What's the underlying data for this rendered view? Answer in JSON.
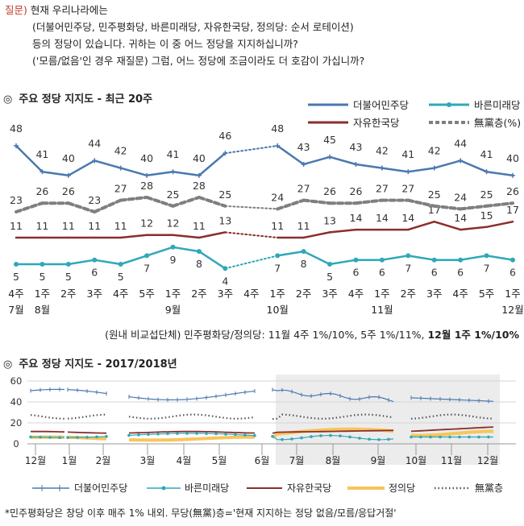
{
  "question": {
    "label": "질문)",
    "lines": [
      "현재 우리나라에는",
      "(더불어민주당, 민주평화당, 바른미래당, 자유한국당, 정의당: 순서 로테이션)",
      "등의 정당이 있습니다. 귀하는 이 중 어느 정당을 지지하십니까?",
      "('모름/없음'인 경우 재질문) 그럼, 어느 정당에 조금이라도 더 호감이 가십니까?"
    ]
  },
  "section1": {
    "marker": "◎",
    "title": "주요 정당 지지도 - 최근 20주"
  },
  "section2": {
    "marker": "◎",
    "title": "주요 정당 지지도 - 2017/2018년"
  },
  "footnote1": {
    "normal": "(원내 비교섭단체) 민주평화당/정의당: 11월 4주 1%/10%, 5주 1%/11%, ",
    "bold": "12월 1주 1%/10%"
  },
  "footnote2": "*민주평화당은 창당 이후 매주 1% 내외. 무당(無黨)층='현재 지지하는 정당 없음/모름/응답거절'",
  "chart_data": [
    {
      "type": "line",
      "title": "주요 정당 지지도 - 최근 20주",
      "categories": [
        "4주",
        "1주",
        "2주",
        "3주",
        "4주",
        "5주",
        "1주",
        "2주",
        "3주",
        "4주",
        "1주",
        "2주",
        "3주",
        "4주",
        "1주",
        "2주",
        "3주",
        "4주",
        "5주",
        "1주"
      ],
      "month_labels": [
        {
          "index": 0,
          "label": "7월"
        },
        {
          "index": 1,
          "label": "8월"
        },
        {
          "index": 6,
          "label": "9월"
        },
        {
          "index": 10,
          "label": "10월"
        },
        {
          "index": 14,
          "label": "11월"
        },
        {
          "index": 19,
          "label": "12월"
        }
      ],
      "series": [
        {
          "name": "더불어민주당",
          "color": "#4a78b0",
          "values": [
            48,
            41,
            40,
            44,
            42,
            40,
            41,
            40,
            46,
            null,
            48,
            43,
            45,
            43,
            42,
            41,
            42,
            44,
            41,
            40
          ]
        },
        {
          "name": "바른미래당",
          "color": "#2fa8b8",
          "values": [
            5,
            5,
            5,
            6,
            5,
            7,
            9,
            8,
            4,
            null,
            7,
            8,
            5,
            6,
            6,
            7,
            6,
            6,
            7,
            6
          ]
        },
        {
          "name": "자유한국당",
          "color": "#8b2e2e",
          "values": [
            11,
            11,
            11,
            11,
            11,
            12,
            12,
            11,
            13,
            null,
            11,
            11,
            13,
            14,
            14,
            14,
            17,
            14,
            15,
            17
          ]
        },
        {
          "name": "無黨층(%)",
          "color": "#7f7f7f",
          "values": [
            23,
            26,
            26,
            23,
            27,
            28,
            25,
            28,
            25,
            null,
            24,
            27,
            26,
            26,
            27,
            27,
            25,
            24,
            25,
            26
          ]
        }
      ],
      "legend": "top-right",
      "grid": false
    },
    {
      "type": "line",
      "title": "주요 정당 지지도 - 2017/2018년",
      "y_ticks": [
        "60",
        "40",
        "20",
        "0"
      ],
      "ylim": [
        0,
        60
      ],
      "month_labels": [
        "12월",
        "1월",
        "2월",
        "3월",
        "4월",
        "5월",
        "6월",
        "7월",
        "8월",
        "9월",
        "10월",
        "11월",
        "12월"
      ],
      "shaded_region": [
        "6월",
        "12월"
      ],
      "legend_position": "bottom",
      "grid": true,
      "series": [
        {
          "name": "더불어민주당",
          "color": "#4a78b0"
        },
        {
          "name": "바른미래당",
          "color": "#2fa8b8"
        },
        {
          "name": "자유한국당",
          "color": "#8b2e2e"
        },
        {
          "name": "정의당",
          "color": "#f7c55a"
        },
        {
          "name": "無黨층",
          "color": "#555555"
        }
      ]
    }
  ]
}
